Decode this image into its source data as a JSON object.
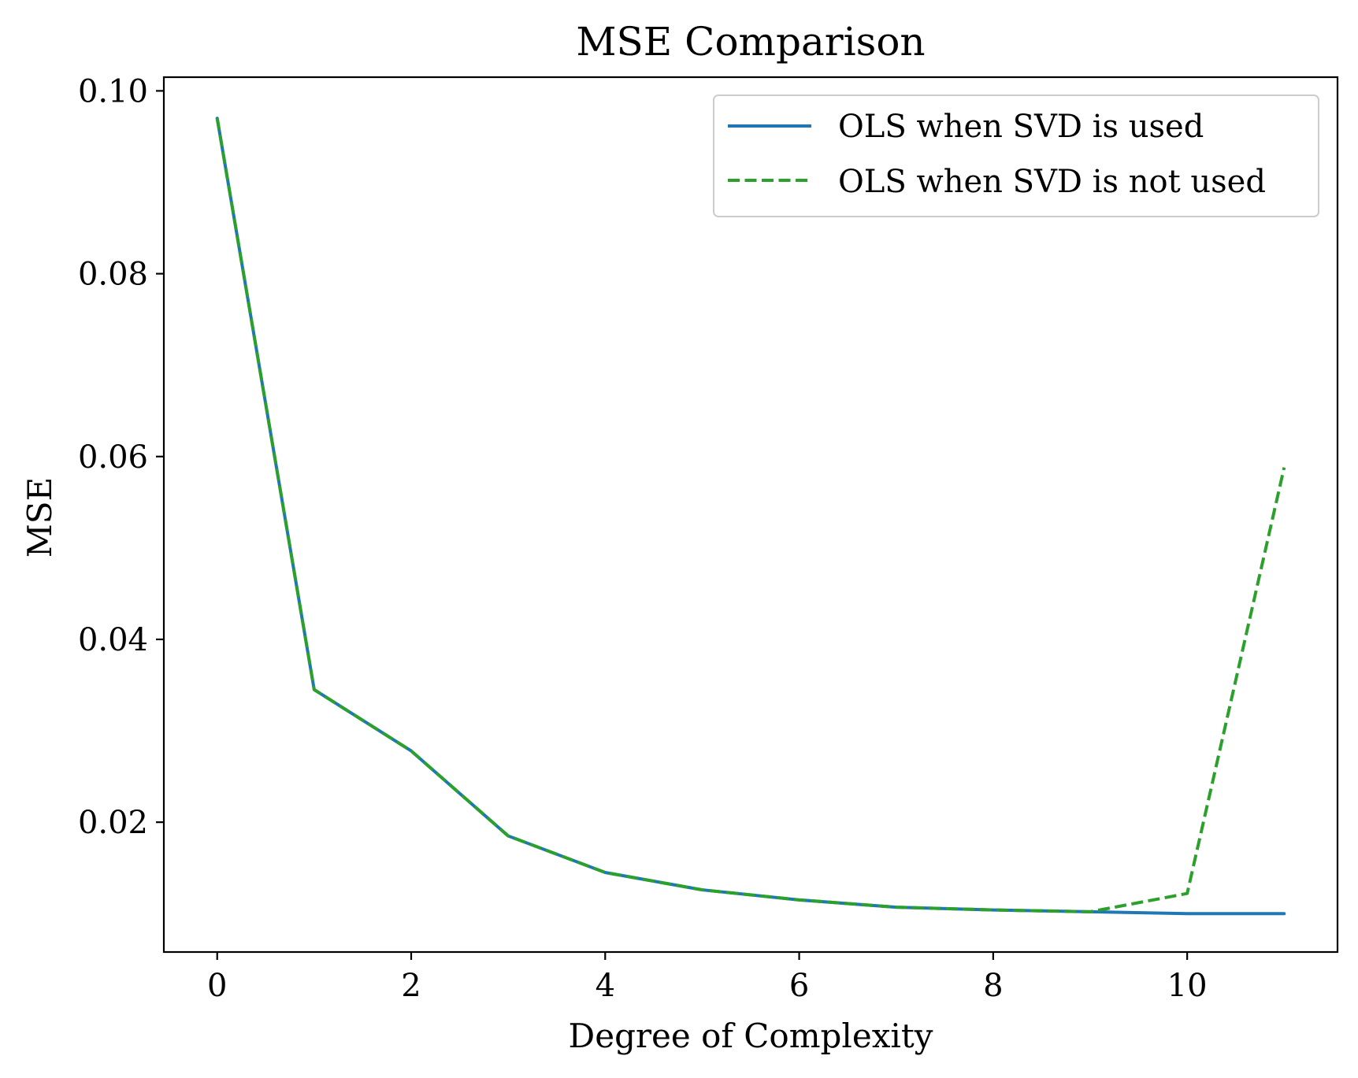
{
  "chart_data": {
    "type": "line",
    "title": "MSE Comparison",
    "xlabel": "Degree of Complexity",
    "ylabel": "MSE",
    "xlim": [
      -0.55,
      11.55
    ],
    "ylim": [
      0.0058,
      0.1015
    ],
    "xticks": [
      0,
      2,
      4,
      6,
      8,
      10
    ],
    "xtick_labels": [
      "0",
      "2",
      "4",
      "6",
      "8",
      "10"
    ],
    "yticks": [
      0.02,
      0.04,
      0.06,
      0.08,
      0.1
    ],
    "ytick_labels": [
      "0.02",
      "0.04",
      "0.06",
      "0.08",
      "0.10"
    ],
    "grid": false,
    "legend_position": "top-right",
    "x": [
      0,
      1,
      2,
      3,
      4,
      5,
      6,
      7,
      8,
      9,
      10,
      11
    ],
    "series": [
      {
        "name": "OLS when SVD is used",
        "color": "#1f77b4",
        "style": "solid",
        "values": [
          0.097,
          0.0345,
          0.0278,
          0.0185,
          0.0145,
          0.0126,
          0.0115,
          0.0107,
          0.0104,
          0.0102,
          0.01,
          0.01
        ]
      },
      {
        "name": "OLS when SVD is not used",
        "color": "#2ca02c",
        "style": "dashed",
        "values": [
          0.097,
          0.0345,
          0.0278,
          0.0185,
          0.0145,
          0.0126,
          0.0115,
          0.0107,
          0.0104,
          0.0102,
          0.0122,
          0.0588
        ]
      }
    ]
  }
}
